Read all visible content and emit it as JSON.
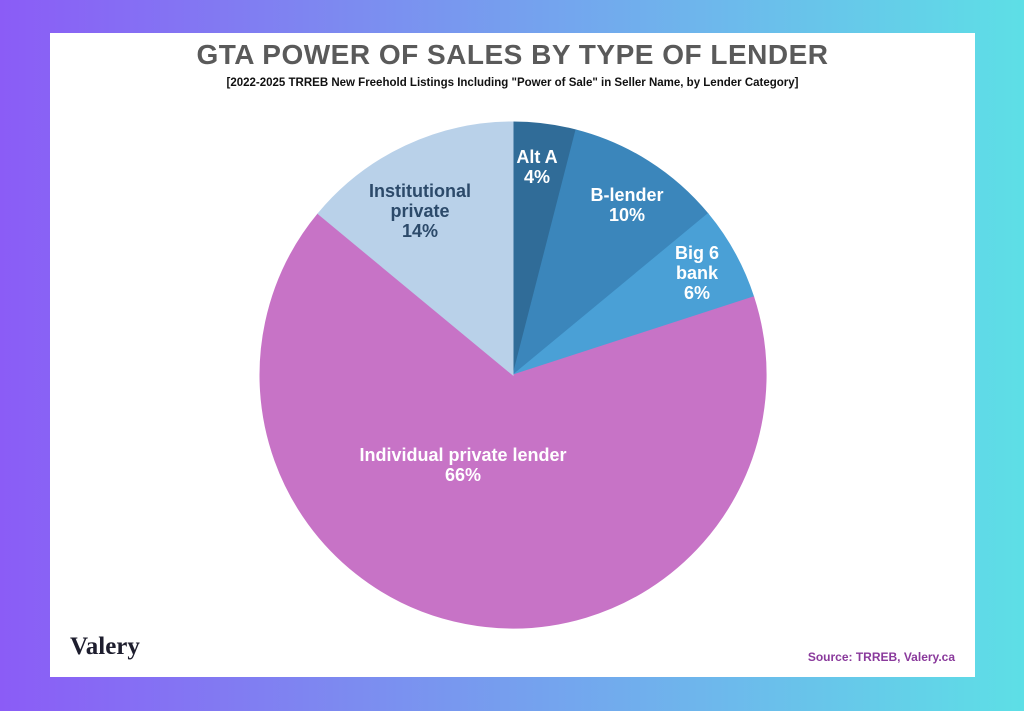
{
  "chart_data": {
    "type": "pie",
    "title": "GTA POWER OF SALES BY TYPE OF LENDER",
    "subtitle": "[2022-2025 TRREB New Freehold Listings Including \"Power of Sale\" in Seller Name, by Lender Category]",
    "categories": [
      "Alt A",
      "B-lender",
      "Big 6 bank",
      "Individual private lender",
      "Institutional private"
    ],
    "values": [
      4,
      10,
      6,
      66,
      14
    ],
    "value_labels": [
      "4%",
      "10%",
      "6%",
      "66%",
      "14%"
    ],
    "colors": [
      "#306c98",
      "#3b86bb",
      "#4aa0d6",
      "#c773c6",
      "#b9d1e9"
    ],
    "label_colors": [
      "#ffffff",
      "#ffffff",
      "#ffffff",
      "#ffffff",
      "#2c4a6a"
    ],
    "source": "Source: TRREB, Valery.ca",
    "logo": "Valery"
  }
}
